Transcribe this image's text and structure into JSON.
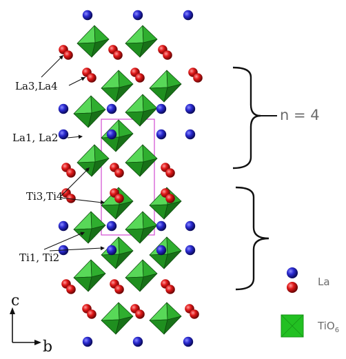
{
  "labels": {
    "la34": "La3,La4",
    "la12": "La1, La2",
    "ti34": "Ti3,Ti4",
    "ti12": "Ti1, Ti2",
    "axis_c": "c",
    "axis_b": "b",
    "n_label": "n = 4"
  },
  "legend": {
    "la": {
      "label": "La",
      "colors": [
        "#1a1ab8",
        "#e11414"
      ]
    },
    "tio6": {
      "label": "TiO",
      "subscript": "6",
      "color": "#22c022"
    }
  },
  "colors": {
    "octahedron": "#2fb52f",
    "la_blue": "#1c1ca8",
    "la_red": "#d61a1a",
    "unit_cell": "#d04ad0",
    "brace": "#111111"
  }
}
